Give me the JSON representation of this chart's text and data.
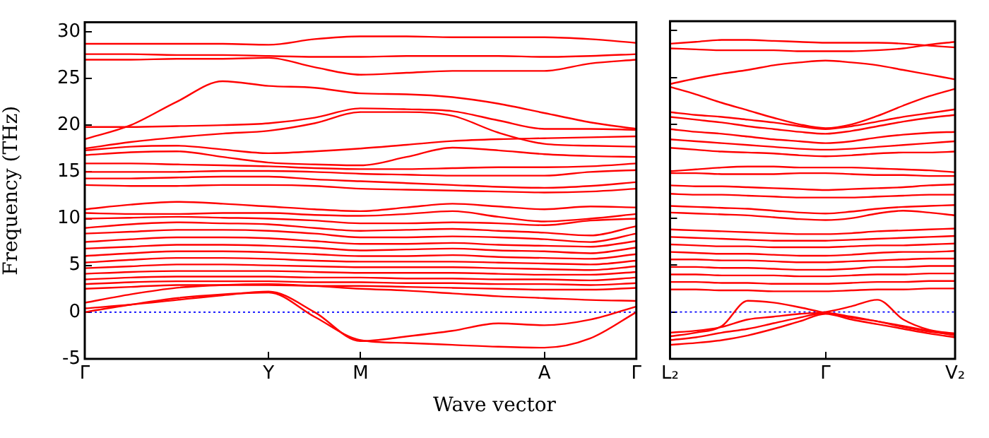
{
  "chart_data": [
    {
      "type": "line",
      "ylabel": "Frequency (THz)",
      "xlabel": "Wave vector",
      "marker": "none",
      "line_style": "solid",
      "grid": false,
      "legend": false,
      "categories": [
        "Γ",
        null,
        null,
        null,
        "Y",
        null,
        "M",
        null,
        null,
        null,
        "A",
        null,
        "Γ"
      ],
      "ylim": [
        -5,
        31
      ],
      "yticks": [
        -5,
        0,
        5,
        10,
        15,
        20,
        25,
        30
      ],
      "ref_lines": [
        {
          "axis": "y",
          "value": 0,
          "color": "#0000ff",
          "line_style": "dotted"
        }
      ],
      "series": [
        {
          "color": "#ff0000",
          "values": [
            28.7,
            28.7,
            28.7,
            28.7,
            28.6,
            29.2,
            29.5,
            29.5,
            29.4,
            29.4,
            29.4,
            29.2,
            28.8
          ]
        },
        {
          "color": "#ff0000",
          "values": [
            27.6,
            27.6,
            27.5,
            27.5,
            27.4,
            27.3,
            27.3,
            27.4,
            27.4,
            27.4,
            27.3,
            27.4,
            27.6
          ]
        },
        {
          "color": "#ff0000",
          "values": [
            27.0,
            27.0,
            27.1,
            27.1,
            27.2,
            26.2,
            25.4,
            25.6,
            25.8,
            25.8,
            25.8,
            26.6,
            27.0
          ]
        },
        {
          "color": "#ff0000",
          "values": [
            18.5,
            20.0,
            22.5,
            24.7,
            24.2,
            24.0,
            23.4,
            23.3,
            23.0,
            22.3,
            21.3,
            20.3,
            19.6
          ]
        },
        {
          "color": "#ff0000",
          "values": [
            19.8,
            19.8,
            19.9,
            20.0,
            20.2,
            20.8,
            21.8,
            21.7,
            21.5,
            20.5,
            19.6,
            19.6,
            19.5
          ]
        },
        {
          "color": "#ff0000",
          "values": [
            17.5,
            18.2,
            18.7,
            19.1,
            19.4,
            20.2,
            21.4,
            21.4,
            21.0,
            19.2,
            18.0,
            17.8,
            17.7
          ]
        },
        {
          "color": "#ff0000",
          "values": [
            17.3,
            17.7,
            17.8,
            17.4,
            17.0,
            17.2,
            17.5,
            17.9,
            18.3,
            18.5,
            18.6,
            18.7,
            18.8
          ]
        },
        {
          "color": "#ff0000",
          "values": [
            16.8,
            17.1,
            17.2,
            16.6,
            16.0,
            15.8,
            15.7,
            16.6,
            17.6,
            17.3,
            16.9,
            16.7,
            16.6
          ]
        },
        {
          "color": "#ff0000",
          "values": [
            15.9,
            15.9,
            15.8,
            15.7,
            15.6,
            15.4,
            15.3,
            15.3,
            15.4,
            15.5,
            15.5,
            15.6,
            15.9
          ]
        },
        {
          "color": "#ff0000",
          "values": [
            15.0,
            15.0,
            15.0,
            15.1,
            15.1,
            15.0,
            14.8,
            14.7,
            14.6,
            14.6,
            14.6,
            15.0,
            15.2
          ]
        },
        {
          "color": "#ff0000",
          "values": [
            14.3,
            14.3,
            14.4,
            14.5,
            14.5,
            14.2,
            14.0,
            13.8,
            13.6,
            13.4,
            13.3,
            13.5,
            13.9
          ]
        },
        {
          "color": "#ff0000",
          "values": [
            13.6,
            13.5,
            13.5,
            13.6,
            13.6,
            13.5,
            13.2,
            13.1,
            13.0,
            12.9,
            12.8,
            12.9,
            13.2
          ]
        },
        {
          "color": "#ff0000",
          "values": [
            11.0,
            11.5,
            11.8,
            11.6,
            11.3,
            11.0,
            10.8,
            11.2,
            11.6,
            11.3,
            11.0,
            11.3,
            11.2
          ]
        },
        {
          "color": "#ff0000",
          "values": [
            10.6,
            10.5,
            10.5,
            10.6,
            10.6,
            10.4,
            10.3,
            10.5,
            10.8,
            10.2,
            9.7,
            10.0,
            10.5
          ]
        },
        {
          "color": "#ff0000",
          "values": [
            10.0,
            10.1,
            10.2,
            10.1,
            10.0,
            9.8,
            9.5,
            9.5,
            9.6,
            9.5,
            9.3,
            9.8,
            10.0
          ]
        },
        {
          "color": "#ff0000",
          "values": [
            9.0,
            9.4,
            9.6,
            9.5,
            9.4,
            9.0,
            8.7,
            8.8,
            8.9,
            8.7,
            8.5,
            8.2,
            9.2
          ]
        },
        {
          "color": "#ff0000",
          "values": [
            8.4,
            8.6,
            8.8,
            8.8,
            8.7,
            8.4,
            8.0,
            8.0,
            8.1,
            8.0,
            7.8,
            7.5,
            8.4
          ]
        },
        {
          "color": "#ff0000",
          "values": [
            7.5,
            7.8,
            8.0,
            8.0,
            7.9,
            7.6,
            7.3,
            7.3,
            7.4,
            7.2,
            7.1,
            7.0,
            7.6
          ]
        },
        {
          "color": "#ff0000",
          "values": [
            6.8,
            7.0,
            7.2,
            7.2,
            7.1,
            6.9,
            6.6,
            6.7,
            6.8,
            6.6,
            6.5,
            6.3,
            6.9
          ]
        },
        {
          "color": "#ff0000",
          "values": [
            6.0,
            6.3,
            6.5,
            6.5,
            6.4,
            6.2,
            6.0,
            6.0,
            6.1,
            5.9,
            5.8,
            5.7,
            6.2
          ]
        },
        {
          "color": "#ff0000",
          "values": [
            5.3,
            5.6,
            5.8,
            5.8,
            5.7,
            5.5,
            5.4,
            5.4,
            5.4,
            5.3,
            5.2,
            5.1,
            5.5
          ]
        },
        {
          "color": "#ff0000",
          "values": [
            4.7,
            4.9,
            5.1,
            5.1,
            5.0,
            4.9,
            4.8,
            4.8,
            4.8,
            4.7,
            4.6,
            4.5,
            4.9
          ]
        },
        {
          "color": "#ff0000",
          "values": [
            4.1,
            4.3,
            4.4,
            4.4,
            4.4,
            4.3,
            4.2,
            4.2,
            4.2,
            4.1,
            4.0,
            4.0,
            4.3
          ]
        },
        {
          "color": "#ff0000",
          "values": [
            3.5,
            3.7,
            3.8,
            3.8,
            3.8,
            3.7,
            3.7,
            3.6,
            3.6,
            3.5,
            3.5,
            3.4,
            3.7
          ]
        },
        {
          "color": "#ff0000",
          "values": [
            3.0,
            3.2,
            3.3,
            3.3,
            3.3,
            3.2,
            3.2,
            3.1,
            3.1,
            3.0,
            3.0,
            2.9,
            3.1
          ]
        },
        {
          "color": "#ff0000",
          "values": [
            2.5,
            2.7,
            2.9,
            2.9,
            2.9,
            2.8,
            2.8,
            2.7,
            2.6,
            2.5,
            2.4,
            2.4,
            2.6
          ]
        },
        {
          "color": "#ff0000",
          "values": [
            1.0,
            1.9,
            2.6,
            2.9,
            3.0,
            2.8,
            2.5,
            2.3,
            2.0,
            1.7,
            1.5,
            1.3,
            1.2
          ]
        },
        {
          "color": "#ff0000",
          "values": [
            0,
            0.8,
            1.5,
            1.9,
            2.1,
            -0.5,
            -3.0,
            -3.3,
            -3.5,
            -3.7,
            -3.8,
            -2.8,
            0
          ]
        },
        {
          "color": "#ff0000",
          "values": [
            0.4,
            0.8,
            1.3,
            1.8,
            2.2,
            0.0,
            -3.1,
            -2.6,
            -2.0,
            -1.2,
            -1.4,
            -0.8,
            0.6
          ]
        }
      ]
    },
    {
      "type": "line",
      "marker": "none",
      "line_style": "solid",
      "grid": false,
      "legend": false,
      "tick_labels": "x",
      "categories": [
        "L₂",
        null,
        null,
        null,
        null,
        null,
        "Γ",
        null,
        null,
        null,
        null,
        "V₂"
      ],
      "ylim": [
        -5,
        31
      ],
      "yticks": [
        {
          "value": -5,
          "label": null
        },
        {
          "value": 0,
          "label": null
        },
        {
          "value": 5,
          "label": null
        },
        {
          "value": 10,
          "label": null
        },
        {
          "value": 15,
          "label": null
        },
        {
          "value": 20,
          "label": null
        },
        {
          "value": 25,
          "label": null
        },
        {
          "value": 30,
          "label": null
        }
      ],
      "ref_lines": [
        {
          "axis": "y",
          "value": 0,
          "color": "#0000ff",
          "line_style": "dotted"
        }
      ],
      "series": [
        {
          "color": "#ff0000",
          "values": [
            28.6,
            28.8,
            29.0,
            29.0,
            28.9,
            28.8,
            28.7,
            28.7,
            28.7,
            28.6,
            28.4,
            28.2
          ]
        },
        {
          "color": "#ff0000",
          "values": [
            28.1,
            28.0,
            27.9,
            27.9,
            27.9,
            27.8,
            27.8,
            27.8,
            27.9,
            28.1,
            28.5,
            28.8
          ]
        },
        {
          "color": "#ff0000",
          "values": [
            24.3,
            24.9,
            25.4,
            25.8,
            26.3,
            26.6,
            26.8,
            26.6,
            26.3,
            25.8,
            25.3,
            24.8
          ]
        },
        {
          "color": "#ff0000",
          "values": [
            24.0,
            23.2,
            22.3,
            21.5,
            20.7,
            20.0,
            19.6,
            20.0,
            20.9,
            22.0,
            23.0,
            23.8
          ]
        },
        {
          "color": "#ff0000",
          "values": [
            21.3,
            21.0,
            20.8,
            20.5,
            20.2,
            19.8,
            19.5,
            19.8,
            20.3,
            20.8,
            21.2,
            21.6
          ]
        },
        {
          "color": "#ff0000",
          "values": [
            20.8,
            20.5,
            20.2,
            19.8,
            19.5,
            19.2,
            19.0,
            19.3,
            19.8,
            20.3,
            20.7,
            21.0
          ]
        },
        {
          "color": "#ff0000",
          "values": [
            19.5,
            19.2,
            19.0,
            18.7,
            18.4,
            18.2,
            18.0,
            18.2,
            18.6,
            18.9,
            19.1,
            19.2
          ]
        },
        {
          "color": "#ff0000",
          "values": [
            18.4,
            18.2,
            18.0,
            17.8,
            17.6,
            17.4,
            17.3,
            17.4,
            17.6,
            17.8,
            18.0,
            18.2
          ]
        },
        {
          "color": "#ff0000",
          "values": [
            17.5,
            17.3,
            17.1,
            17.0,
            16.9,
            16.7,
            16.6,
            16.7,
            16.9,
            17.0,
            17.0,
            17.1
          ]
        },
        {
          "color": "#ff0000",
          "values": [
            15.0,
            15.2,
            15.4,
            15.5,
            15.5,
            15.4,
            15.4,
            15.4,
            15.3,
            15.2,
            15.1,
            14.9
          ]
        },
        {
          "color": "#ff0000",
          "values": [
            14.8,
            14.8,
            14.7,
            14.7,
            14.7,
            14.8,
            14.8,
            14.7,
            14.6,
            14.6,
            14.5,
            14.5
          ]
        },
        {
          "color": "#ff0000",
          "values": [
            13.5,
            13.4,
            13.4,
            13.3,
            13.2,
            13.1,
            13.0,
            13.1,
            13.2,
            13.3,
            13.5,
            13.6
          ]
        },
        {
          "color": "#ff0000",
          "values": [
            12.6,
            12.5,
            12.5,
            12.4,
            12.3,
            12.2,
            12.2,
            12.2,
            12.3,
            12.4,
            12.5,
            12.5
          ]
        },
        {
          "color": "#ff0000",
          "values": [
            11.3,
            11.2,
            11.1,
            11.0,
            10.8,
            10.6,
            10.5,
            10.7,
            11.0,
            11.2,
            11.3,
            11.4
          ]
        },
        {
          "color": "#ff0000",
          "values": [
            10.6,
            10.5,
            10.4,
            10.3,
            10.1,
            9.9,
            9.8,
            10.0,
            10.5,
            10.8,
            10.6,
            10.3
          ]
        },
        {
          "color": "#ff0000",
          "values": [
            8.8,
            8.7,
            8.6,
            8.5,
            8.4,
            8.3,
            8.3,
            8.4,
            8.6,
            8.7,
            8.8,
            8.9
          ]
        },
        {
          "color": "#ff0000",
          "values": [
            8.0,
            7.9,
            7.8,
            7.7,
            7.6,
            7.6,
            7.6,
            7.7,
            7.8,
            7.9,
            8.0,
            8.1
          ]
        },
        {
          "color": "#ff0000",
          "values": [
            7.2,
            7.1,
            7.0,
            7.0,
            6.9,
            6.9,
            6.9,
            7.0,
            7.1,
            7.1,
            7.2,
            7.3
          ]
        },
        {
          "color": "#ff0000",
          "values": [
            6.4,
            6.3,
            6.2,
            6.2,
            6.1,
            6.0,
            6.0,
            6.1,
            6.3,
            6.4,
            6.4,
            6.5
          ]
        },
        {
          "color": "#ff0000",
          "values": [
            5.6,
            5.6,
            5.5,
            5.5,
            5.4,
            5.3,
            5.3,
            5.4,
            5.5,
            5.6,
            5.7,
            5.7
          ]
        },
        {
          "color": "#ff0000",
          "values": [
            4.8,
            4.8,
            4.7,
            4.7,
            4.6,
            4.5,
            4.5,
            4.6,
            4.8,
            4.8,
            4.9,
            4.9
          ]
        },
        {
          "color": "#ff0000",
          "values": [
            4.0,
            4.0,
            3.9,
            3.9,
            3.9,
            3.8,
            3.8,
            3.9,
            4.0,
            4.0,
            4.1,
            4.1
          ]
        },
        {
          "color": "#ff0000",
          "values": [
            3.2,
            3.2,
            3.1,
            3.1,
            3.0,
            3.0,
            3.0,
            3.1,
            3.2,
            3.2,
            3.3,
            3.3
          ]
        },
        {
          "color": "#ff0000",
          "values": [
            2.4,
            2.4,
            2.3,
            2.3,
            2.2,
            2.2,
            2.2,
            2.3,
            2.4,
            2.4,
            2.5,
            2.5
          ]
        },
        {
          "color": "#ff0000",
          "values": [
            -2.6,
            -2.2,
            -1.5,
            1.2,
            1.0,
            0.5,
            -0.1,
            -0.6,
            -1.0,
            -1.6,
            -2.1,
            -2.4
          ]
        },
        {
          "color": "#ff0000",
          "values": [
            -2.2,
            -2.0,
            -1.6,
            -0.8,
            -0.5,
            -0.2,
            0.0,
            0.6,
            1.3,
            -0.8,
            -1.9,
            -2.3
          ]
        },
        {
          "color": "#ff0000",
          "values": [
            -3.0,
            -2.7,
            -2.2,
            -1.8,
            -1.2,
            -0.6,
            -0.1,
            -0.5,
            -1.0,
            -1.5,
            -2.0,
            -2.5
          ]
        },
        {
          "color": "#ff0000",
          "values": [
            -3.5,
            -3.3,
            -3.0,
            -2.5,
            -1.8,
            -1.0,
            -0.2,
            -0.8,
            -1.3,
            -1.8,
            -2.3,
            -2.7
          ]
        }
      ]
    }
  ]
}
